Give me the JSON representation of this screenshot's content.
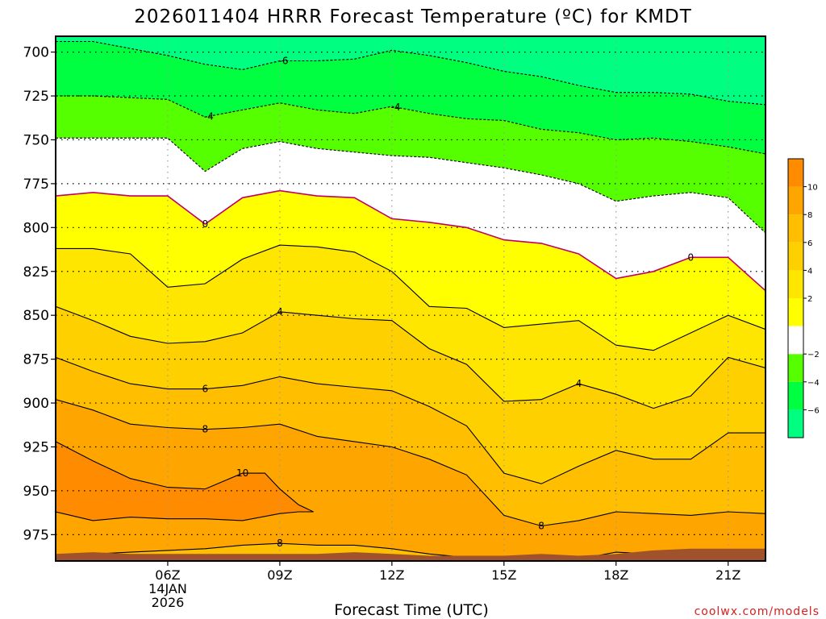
{
  "chart_data": {
    "type": "contour",
    "title": "2026011404 HRRR Forecast Temperature (ºC) for KMDT",
    "xlabel": "Forecast Time (UTC)",
    "ylabel": "",
    "credit": "coolwx.com/models",
    "x_range_hours": [
      3,
      22
    ],
    "y_range_hPa": [
      691,
      990
    ],
    "x_ticks": [
      {
        "hour": 6,
        "label": "06Z",
        "date": "14JAN",
        "year": "2026"
      },
      {
        "hour": 9,
        "label": "09Z"
      },
      {
        "hour": 12,
        "label": "12Z"
      },
      {
        "hour": 15,
        "label": "15Z"
      },
      {
        "hour": 18,
        "label": "18Z"
      },
      {
        "hour": 21,
        "label": "21Z"
      }
    ],
    "y_ticks": [
      700,
      725,
      750,
      775,
      800,
      825,
      850,
      875,
      900,
      925,
      950,
      975
    ],
    "x_hours": [
      3,
      4,
      5,
      6,
      7,
      8,
      9,
      10,
      11,
      12,
      13,
      14,
      15,
      16,
      17,
      18,
      19,
      20,
      21,
      22
    ],
    "isotherms": [
      {
        "value": -6,
        "label": "-6",
        "pressures": [
          694,
          694,
          698,
          702,
          707,
          710,
          705,
          705,
          704,
          699,
          702,
          706,
          711,
          714,
          719,
          723,
          723,
          724,
          728,
          730
        ]
      },
      {
        "value": -4,
        "label": "-4",
        "pressures": [
          725,
          725,
          726,
          727,
          737,
          733,
          729,
          733,
          735,
          731,
          735,
          738,
          739,
          744,
          746,
          750,
          749,
          751,
          754,
          758
        ]
      },
      {
        "value": -2,
        "label": "",
        "pressures": [
          749,
          749,
          749,
          749,
          768,
          755,
          751,
          755,
          757,
          759,
          760,
          763,
          766,
          770,
          775,
          785,
          782,
          780,
          783,
          803
        ]
      },
      {
        "value": 0,
        "label": "0",
        "pressures": [
          782,
          780,
          782,
          782,
          798,
          783,
          779,
          782,
          783,
          795,
          797,
          800,
          807,
          809,
          815,
          829,
          825,
          817,
          817,
          836
        ]
      },
      {
        "value": 2,
        "label": "",
        "pressures": [
          812,
          812,
          815,
          834,
          832,
          818,
          810,
          811,
          814,
          825,
          845,
          846,
          857,
          855,
          853,
          867,
          870,
          860,
          850,
          858
        ]
      },
      {
        "value": 4,
        "label": "4",
        "pressures": [
          845,
          853,
          862,
          866,
          865,
          860,
          848,
          850,
          852,
          853,
          869,
          878,
          899,
          898,
          889,
          895,
          903,
          896,
          874,
          880
        ]
      },
      {
        "value": 6,
        "label": "6",
        "pressures": [
          874,
          882,
          889,
          892,
          892,
          890,
          885,
          889,
          891,
          893,
          902,
          913,
          940,
          946,
          936,
          927,
          932,
          932,
          917,
          917
        ]
      },
      {
        "value": 8,
        "label": "8",
        "pressures": [
          898,
          904,
          912,
          914,
          915,
          914,
          912,
          919,
          922,
          925,
          932,
          941,
          964,
          970,
          967,
          962,
          963,
          964,
          962,
          963
        ]
      },
      {
        "value": 10,
        "label": "10",
        "series_hours": [
          3,
          4,
          5,
          6,
          7,
          8,
          8.6,
          9,
          9.5,
          9.9,
          9.5,
          9,
          8,
          7,
          6,
          5,
          4,
          3
        ],
        "pressures": [
          922,
          933,
          943,
          948,
          949,
          940,
          940,
          949,
          958,
          962,
          962,
          963,
          967,
          966,
          966,
          965,
          967,
          962
        ]
      },
      {
        "value": 8,
        "label": "8",
        "pressures": [
          987,
          986,
          985,
          984,
          983,
          981,
          980,
          981,
          981,
          983,
          986,
          988,
          989,
          989,
          989,
          985,
          986,
          986,
          986,
          987
        ]
      }
    ],
    "surface_pressure_hPa": [
      986,
      985,
      986,
      986,
      986,
      986,
      986,
      986,
      985,
      986,
      987,
      987,
      987,
      986,
      987,
      986,
      984,
      983,
      983,
      983
    ],
    "colorbar": {
      "levels": [
        -8,
        -6,
        -4,
        -2,
        0,
        2,
        4,
        6,
        8,
        10,
        12
      ],
      "colors": [
        "#00ff80",
        "#00ff40",
        "#55ff00",
        "#ffffff",
        "#ffff00",
        "#ffe600",
        "#ffd000",
        "#ffbf00",
        "#ffa500",
        "#ff8c00"
      ],
      "tick_labels": [
        "-6",
        "-4",
        "-2",
        "2",
        "4",
        "6",
        "8",
        "10"
      ],
      "tick_values": [
        -6,
        -4,
        -2,
        2,
        4,
        6,
        8,
        10
      ]
    }
  }
}
